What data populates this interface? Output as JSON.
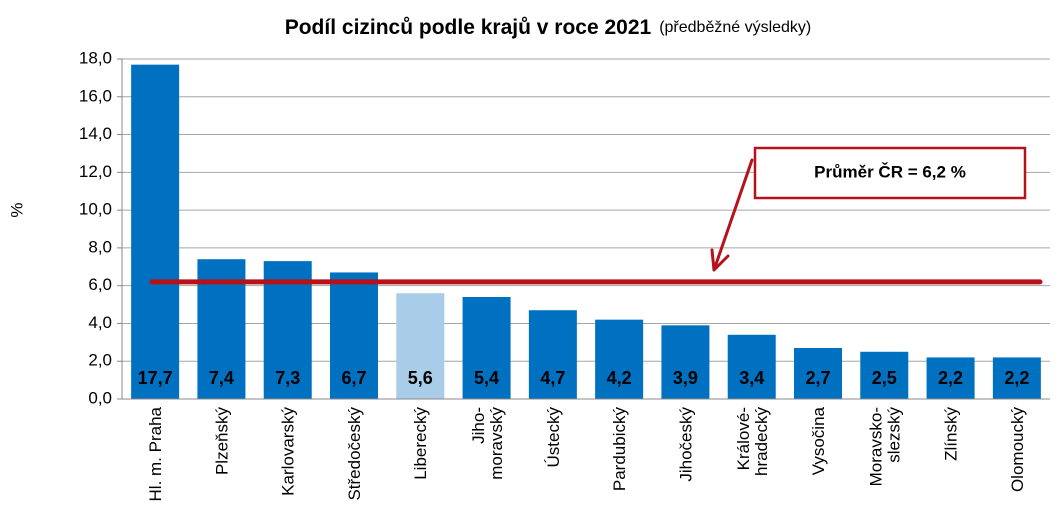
{
  "chart_data": {
    "type": "bar",
    "title": "Podíl cizinců podle krajů v roce 2021",
    "subtitle": "(předběžné výsledky)",
    "y_label": "%",
    "categories": [
      "Hl. m. Praha",
      "Plzeňský",
      "Karlovarský",
      "Středočeský",
      "Liberecký",
      "Jiho-\nmoravský",
      "Ústecký",
      "Pardubický",
      "Jihočeský",
      "Králové-\nhradecký",
      "Vysočina",
      "Moravsko-\nslezský",
      "Zlínský",
      "Olomoucký"
    ],
    "values": [
      17.7,
      7.4,
      7.3,
      6.7,
      5.6,
      5.4,
      4.7,
      4.2,
      3.9,
      3.4,
      2.7,
      2.5,
      2.2,
      2.2
    ],
    "value_labels": [
      "17,7",
      "7,4",
      "7,3",
      "6,7",
      "5,6",
      "5,4",
      "4,7",
      "4,2",
      "3,9",
      "3,4",
      "2,7",
      "2,5",
      "2,2",
      "2,2"
    ],
    "colors": [
      "#0070c0",
      "#0070c0",
      "#0070c0",
      "#0070c0",
      "#a9cde9",
      "#0070c0",
      "#0070c0",
      "#0070c0",
      "#0070c0",
      "#0070c0",
      "#0070c0",
      "#0070c0",
      "#0070c0",
      "#0070c0"
    ],
    "label_colors": [
      "#ffffff",
      "#ffffff",
      "#ffffff",
      "#ffffff",
      "#000000",
      "#ffffff",
      "#ffffff",
      "#ffffff",
      "#ffffff",
      "#ffffff",
      "#ffffff",
      "#ffffff",
      "#ffffff",
      "#ffffff"
    ],
    "ylim": [
      0,
      18
    ],
    "yticks": [
      {
        "value": 0,
        "label": "0,0"
      },
      {
        "value": 2,
        "label": "2,0"
      },
      {
        "value": 4,
        "label": "4,0"
      },
      {
        "value": 6,
        "label": "6,0"
      },
      {
        "value": 8,
        "label": "8,0"
      },
      {
        "value": 10,
        "label": "10,0"
      },
      {
        "value": 12,
        "label": "12,0"
      },
      {
        "value": 14,
        "label": "14,0"
      },
      {
        "value": 16,
        "label": "16,0"
      },
      {
        "value": 18,
        "label": "18,0"
      }
    ],
    "grid": true,
    "average": {
      "value": 6.2,
      "label": "Průměr ČR = 6,2 %",
      "color": "#b5121b"
    }
  }
}
